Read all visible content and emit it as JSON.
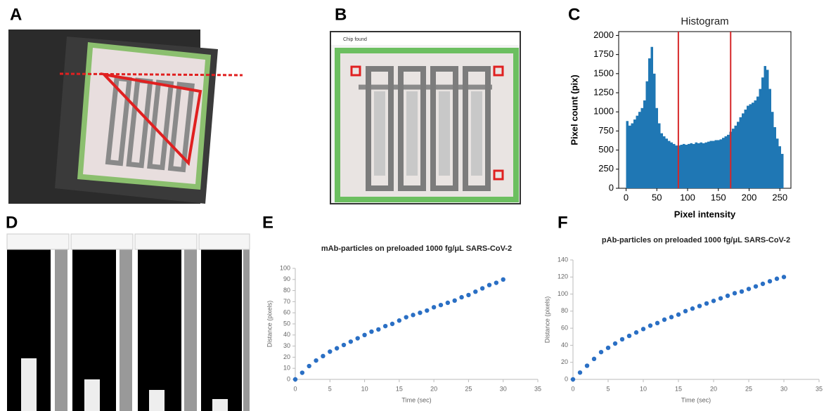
{
  "panel_labels": [
    "A",
    "B",
    "C",
    "D",
    "E",
    "F"
  ],
  "window_title": "Chip found",
  "chart_data": [
    {
      "type": "histogram",
      "title": "Histogram",
      "x_label": "Pixel intensity",
      "y_label": "Pixel count (pix)",
      "bins": [
        0,
        4,
        8,
        12,
        16,
        20,
        24,
        28,
        32,
        36,
        40,
        44,
        48,
        52,
        56,
        60,
        64,
        68,
        72,
        76,
        80,
        84,
        88,
        92,
        96,
        100,
        104,
        108,
        112,
        116,
        120,
        124,
        128,
        132,
        136,
        140,
        144,
        148,
        152,
        156,
        160,
        164,
        168,
        172,
        176,
        180,
        184,
        188,
        192,
        196,
        200,
        204,
        208,
        212,
        216,
        220,
        224,
        228,
        232,
        236,
        240,
        244,
        248,
        252,
        256
      ],
      "values": [
        880,
        820,
        850,
        900,
        950,
        1000,
        1050,
        1150,
        1400,
        1700,
        1850,
        1500,
        1050,
        850,
        720,
        680,
        650,
        620,
        600,
        580,
        560,
        560,
        570,
        580,
        570,
        580,
        590,
        580,
        600,
        590,
        600,
        590,
        600,
        610,
        620,
        620,
        630,
        630,
        640,
        660,
        680,
        700,
        740,
        780,
        820,
        870,
        930,
        980,
        1030,
        1080,
        1100,
        1120,
        1150,
        1200,
        1300,
        1450,
        1600,
        1550,
        1300,
        1000,
        800,
        650,
        550,
        450
      ],
      "color": "#1f77b4",
      "vlines": [
        85,
        170
      ],
      "vline_color": "#d62728",
      "xlim": [
        -12,
        268
      ],
      "xticks": [
        0,
        50,
        100,
        150,
        200,
        250
      ],
      "ylim": [
        0,
        2050
      ],
      "yticks": [
        0,
        250,
        500,
        750,
        1000,
        1250,
        1500,
        1750,
        2000
      ]
    },
    {
      "type": "scatter",
      "title": "mAb-particles on preloaded 1000 fg/μL SARS-CoV-2",
      "x_label": "Time (sec)",
      "y_label": "Distance (pixels)",
      "x": [
        0,
        1,
        2,
        3,
        4,
        5,
        6,
        7,
        8,
        9,
        10,
        11,
        12,
        13,
        14,
        15,
        16,
        17,
        18,
        19,
        20,
        21,
        22,
        23,
        24,
        25,
        26,
        27,
        28,
        29,
        30
      ],
      "values": [
        0,
        6,
        12,
        17,
        21,
        25,
        28,
        31,
        34,
        37,
        40,
        43,
        45,
        48,
        50,
        53,
        56,
        58,
        60,
        62,
        65,
        67,
        69,
        71,
        74,
        76,
        79,
        82,
        85,
        87,
        90
      ],
      "color": "#2a6fc4",
      "xlim": [
        0,
        35
      ],
      "xticks": [
        0,
        5,
        10,
        15,
        20,
        25,
        30,
        35
      ],
      "ylim": [
        0,
        100
      ],
      "yticks": [
        0,
        10,
        20,
        30,
        40,
        50,
        60,
        70,
        80,
        90,
        100
      ]
    },
    {
      "type": "scatter",
      "title": "pAb-particles on preloaded 1000 fg/μL SARS-CoV-2",
      "x_label": "Time (sec)",
      "y_label": "Distance (pixels)",
      "x": [
        0,
        1,
        2,
        3,
        4,
        5,
        6,
        7,
        8,
        9,
        10,
        11,
        12,
        13,
        14,
        15,
        16,
        17,
        18,
        19,
        20,
        21,
        22,
        23,
        24,
        25,
        26,
        27,
        28,
        29,
        30
      ],
      "values": [
        0,
        8,
        16,
        24,
        32,
        37,
        42,
        47,
        51,
        55,
        59,
        63,
        66,
        70,
        73,
        76,
        80,
        83,
        86,
        89,
        92,
        95,
        98,
        101,
        103,
        106,
        109,
        112,
        115,
        118,
        120
      ],
      "color": "#2a6fc4",
      "xlim": [
        0,
        35
      ],
      "xticks": [
        0,
        5,
        10,
        15,
        20,
        25,
        30,
        35
      ],
      "ylim": [
        0,
        140
      ],
      "yticks": [
        0,
        20,
        40,
        60,
        80,
        100,
        120,
        140
      ]
    }
  ]
}
